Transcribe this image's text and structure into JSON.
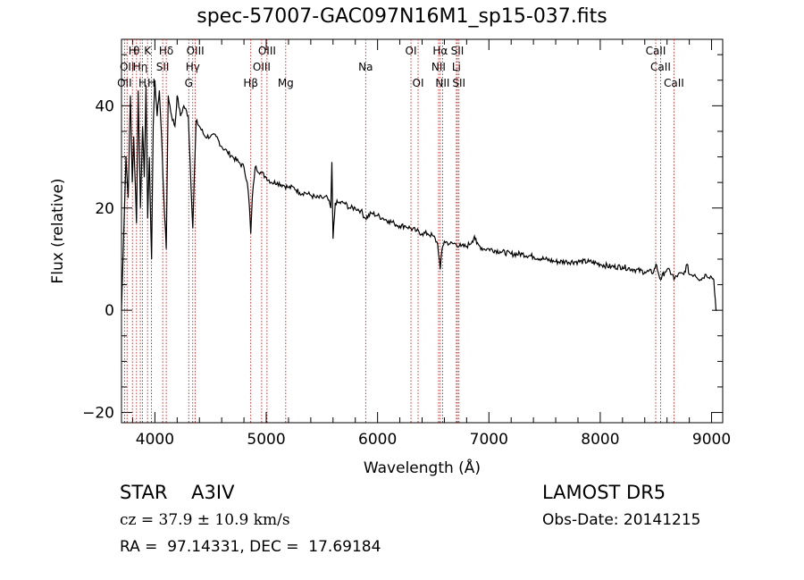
{
  "chart_data": {
    "type": "line",
    "title": "spec-57007-GAC097N16M1_sp15-037.fits",
    "xlabel": "Wavelength (Å)",
    "ylabel": "Flux (relative)",
    "xlim": [
      3700,
      9100
    ],
    "ylim": [
      -22,
      53
    ],
    "x_ticks": [
      4000,
      5000,
      6000,
      7000,
      8000,
      9000
    ],
    "y_ticks": [
      -20,
      0,
      20,
      40
    ],
    "x_minor_step": 200,
    "y_minor_step": 5,
    "grid": false,
    "line_color": "#000000",
    "marker_color": "#cc0000",
    "series": [
      {
        "x": [
          3700,
          3720,
          3740,
          3760,
          3780,
          3797,
          3810,
          3835,
          3850,
          3870,
          3889,
          3905,
          3920,
          3935,
          3950,
          3970,
          3985,
          4000,
          4020,
          4040,
          4060,
          4080,
          4102,
          4120,
          4150,
          4180,
          4200,
          4230,
          4260,
          4300,
          4340,
          4370,
          4400,
          4450,
          4500,
          4550,
          4600,
          4650,
          4700,
          4750,
          4800,
          4830,
          4850,
          4861,
          4875,
          4900,
          4950,
          5000,
          5050,
          5100,
          5150,
          5200,
          5250,
          5300,
          5350,
          5400,
          5450,
          5500,
          5550,
          5580,
          5590,
          5600,
          5620,
          5650,
          5700,
          5750,
          5800,
          5850,
          5890,
          5950,
          6000,
          6050,
          6100,
          6150,
          6200,
          6250,
          6300,
          6350,
          6400,
          6450,
          6500,
          6540,
          6563,
          6580,
          6600,
          6650,
          6700,
          6750,
          6800,
          6850,
          6870,
          6890,
          6920,
          6950,
          7000,
          7100,
          7200,
          7300,
          7400,
          7500,
          7600,
          7700,
          7800,
          7900,
          8000,
          8100,
          8200,
          8300,
          8400,
          8480,
          8500,
          8520,
          8542,
          8580,
          8600,
          8650,
          8662,
          8700,
          8750,
          8780,
          8800,
          8850,
          8900,
          8950,
          9000,
          9020,
          9040,
          9050
        ],
        "y": [
          0,
          15,
          30,
          22,
          42,
          25,
          34,
          17,
          43,
          20,
          36,
          26,
          44,
          18,
          30,
          10,
          36,
          45,
          38,
          43,
          34,
          22,
          12,
          42,
          38,
          36,
          42,
          38,
          40,
          38,
          16,
          37,
          36,
          34,
          34,
          34,
          32,
          31,
          30,
          29,
          28,
          25,
          20,
          15,
          22,
          28,
          27,
          26,
          25,
          25,
          24.5,
          24,
          24,
          23,
          23,
          22.5,
          22,
          22,
          22,
          20,
          29,
          14,
          21,
          21,
          21,
          20,
          20,
          19.5,
          18,
          19,
          18.5,
          18,
          17.5,
          17,
          16.5,
          16.5,
          16,
          15.5,
          15,
          15,
          14.5,
          13,
          8,
          12,
          13.5,
          13,
          13,
          12.5,
          12.5,
          13.5,
          14.5,
          13,
          12.5,
          12,
          12,
          11.5,
          11,
          11,
          10.5,
          10,
          9.5,
          9.5,
          9.5,
          9.5,
          9,
          8.5,
          8.5,
          8,
          7.5,
          7.5,
          9,
          7.5,
          6,
          7.5,
          8,
          7,
          6,
          7,
          7,
          9,
          7,
          7,
          6,
          7,
          6.5,
          6,
          0,
          0
        ]
      }
    ],
    "line_markers": [
      {
        "wavelength": 3727,
        "label": "OII",
        "row": 3
      },
      {
        "wavelength": 3750,
        "label": "OII",
        "row": 2
      },
      {
        "wavelength": 3798,
        "label": "H",
        "row": 1
      },
      {
        "wavelength": 3835,
        "label": "θ",
        "row": 1
      },
      {
        "wavelength": 3869,
        "label": "Hη",
        "row": 2
      },
      {
        "wavelength": 3889,
        "label": "H",
        "row": 3
      },
      {
        "wavelength": 3934,
        "label": "K",
        "row": 1
      },
      {
        "wavelength": 3969,
        "label": "H",
        "row": 3
      },
      {
        "wavelength": 4070,
        "label": "SII",
        "row": 2
      },
      {
        "wavelength": 4102,
        "label": "Hδ",
        "row": 1
      },
      {
        "wavelength": 4304,
        "label": "G",
        "row": 3
      },
      {
        "wavelength": 4340,
        "label": "Hγ",
        "row": 2
      },
      {
        "wavelength": 4363,
        "label": "OIII",
        "row": 1
      },
      {
        "wavelength": 4861,
        "label": "Hβ",
        "row": 3
      },
      {
        "wavelength": 4959,
        "label": "OIII",
        "row": 2
      },
      {
        "wavelength": 5007,
        "label": "OIII",
        "row": 1
      },
      {
        "wavelength": 5175,
        "label": "Mg",
        "row": 3
      },
      {
        "wavelength": 5893,
        "label": "Na",
        "row": 2
      },
      {
        "wavelength": 6300,
        "label": "OI",
        "row": 1
      },
      {
        "wavelength": 6364,
        "label": "OI",
        "row": 3
      },
      {
        "wavelength": 6548,
        "label": "NII",
        "row": 2
      },
      {
        "wavelength": 6563,
        "label": "Hα",
        "row": 1
      },
      {
        "wavelength": 6584,
        "label": "NII",
        "row": 3
      },
      {
        "wavelength": 6708,
        "label": "Li",
        "row": 2
      },
      {
        "wavelength": 6717,
        "label": "SII",
        "row": 1
      },
      {
        "wavelength": 6731,
        "label": "SII",
        "row": 3
      },
      {
        "wavelength": 8498,
        "label": "CaII",
        "row": 1
      },
      {
        "wavelength": 8542,
        "label": "CaII",
        "row": 2
      },
      {
        "wavelength": 8662,
        "label": "CaII",
        "row": 3
      }
    ]
  },
  "info": {
    "class_line": "STAR    A3IV",
    "survey": "LAMOST DR5",
    "cz_line": "cz = 37.9 ± 10.9 km/s",
    "obs_date": "Obs-Date: 20141215",
    "radec": "RA =  97.14331, DEC =  17.69184"
  }
}
